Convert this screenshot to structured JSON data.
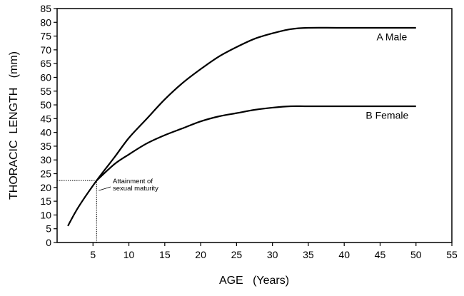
{
  "chart_data": {
    "type": "line",
    "xlabel": "AGE   (Years)",
    "ylabel": "THORACIC  LENGTH   (mm)",
    "xlim": [
      0,
      55
    ],
    "ylim": [
      0,
      85
    ],
    "xticks": [
      5,
      10,
      15,
      20,
      25,
      30,
      35,
      40,
      45,
      50,
      55
    ],
    "yticks": [
      0,
      5,
      10,
      15,
      20,
      25,
      30,
      35,
      40,
      45,
      50,
      55,
      60,
      65,
      70,
      75,
      80,
      85
    ],
    "grid": false,
    "series": [
      {
        "name": "A   Male",
        "x": [
          1.5,
          3,
          5.5,
          8,
          10,
          12.5,
          15,
          17.5,
          20,
          22.5,
          25,
          27.5,
          30,
          32.5,
          35,
          40,
          50
        ],
        "y": [
          6,
          13,
          22.5,
          31,
          38,
          45,
          52,
          58,
          63,
          67.5,
          71,
          74,
          76,
          77.5,
          78,
          78,
          78
        ]
      },
      {
        "name": "B   Female",
        "x": [
          5.5,
          8,
          10,
          12.5,
          15,
          17.5,
          20,
          22.5,
          25,
          27.5,
          30,
          32.5,
          35,
          40,
          50
        ],
        "y": [
          22.5,
          28.5,
          32,
          36,
          39,
          41.5,
          44,
          45.8,
          47,
          48.2,
          49,
          49.5,
          49.5,
          49.5,
          49.5
        ]
      }
    ],
    "annotation": {
      "text_lines": [
        "Attainment of",
        "sexual maturity"
      ],
      "x": 5.5,
      "y": 22.5
    }
  }
}
